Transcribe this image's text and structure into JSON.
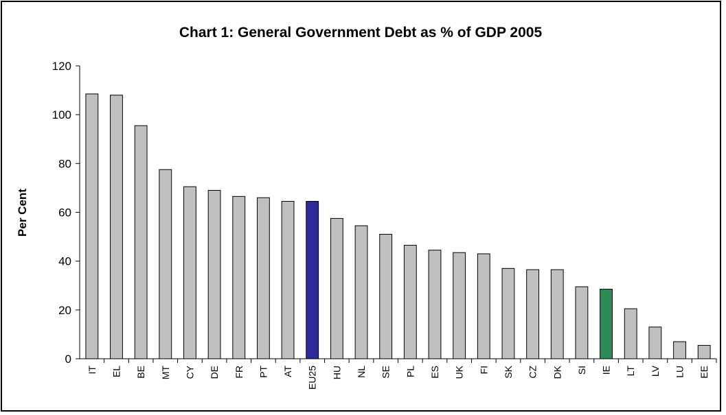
{
  "chart_data": {
    "type": "bar",
    "title": "Chart 1: General Government Debt as % of GDP 2005",
    "xlabel": "",
    "ylabel": "Per Cent",
    "ylim": [
      0,
      120
    ],
    "yticks": [
      0,
      20,
      40,
      60,
      80,
      100,
      120
    ],
    "grid": false,
    "legend": "none",
    "categories": [
      "IT",
      "EL",
      "BE",
      "MT",
      "CY",
      "DE",
      "FR",
      "PT",
      "AT",
      "EU25",
      "HU",
      "NL",
      "SE",
      "PL",
      "ES",
      "UK",
      "FI",
      "SK",
      "CZ",
      "DK",
      "SI",
      "IE",
      "LT",
      "LV",
      "LU",
      "EE"
    ],
    "values": [
      108.5,
      108,
      95.5,
      77.5,
      70.5,
      69,
      66.5,
      66,
      64.5,
      64.5,
      57.5,
      54.5,
      51,
      46.5,
      44.5,
      43.5,
      43,
      37,
      36.5,
      36.5,
      29.5,
      28.5,
      20.5,
      13,
      7,
      5.5
    ],
    "colors": {
      "default": "#c0c0c0",
      "highlights": {
        "EU25": "#2b2b9a",
        "IE": "#2e8b57"
      },
      "stroke": "#000000"
    }
  }
}
